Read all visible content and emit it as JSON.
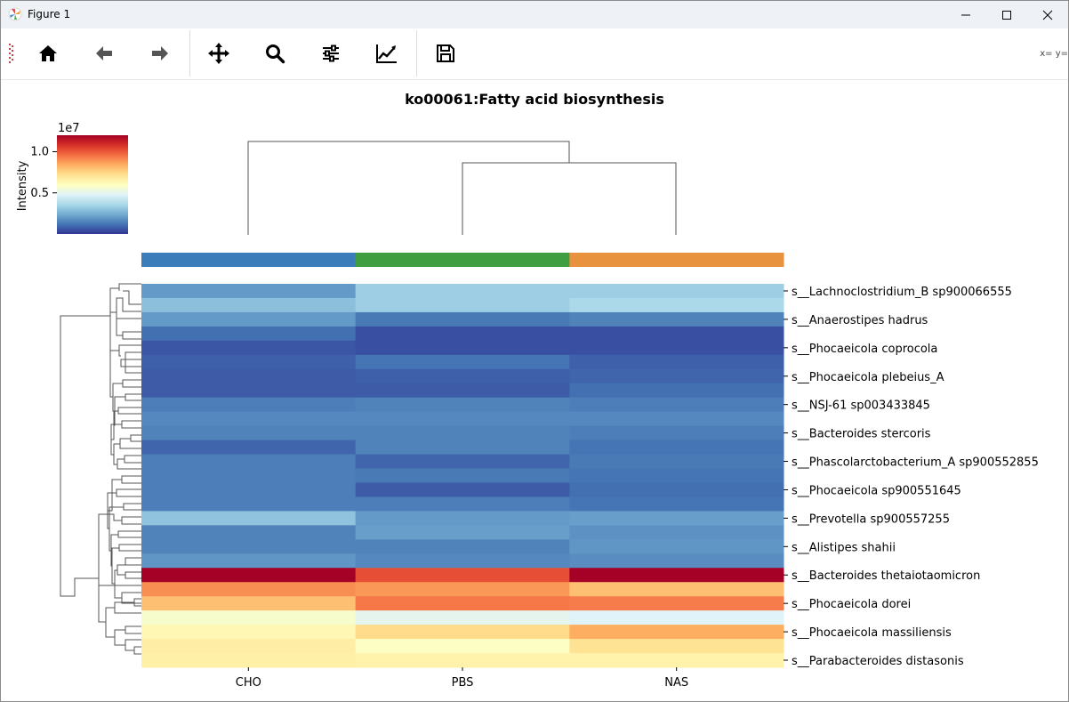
{
  "window": {
    "title": "Figure 1",
    "controls": {
      "minimize": "minimize-icon",
      "maximize": "maximize-icon",
      "close": "close-icon"
    }
  },
  "toolbar": {
    "items": [
      "home-icon",
      "back-arrow-icon",
      "forward-arrow-icon",
      "pan-icon",
      "zoom-icon",
      "configure-subplots-icon",
      "edit-axis-icon",
      "save-icon"
    ],
    "coords_text": "x= y="
  },
  "chart_data": {
    "type": "heatmap",
    "title": "ko00061:Fatty acid biosynthesis",
    "columns": [
      "CHO",
      "PBS",
      "NAS"
    ],
    "column_colors": [
      "#3a7db8",
      "#3f9e40",
      "#e8913f"
    ],
    "row_labels_shown": [
      "s__Lachnoclostridium_B sp900066555",
      "s__Anaerostipes hadrus",
      "s__Phocaeicola coprocola",
      "s__Phocaeicola plebeius_A",
      "s__NSJ-61 sp003433845",
      "s__Bacteroides stercoris",
      "s__Phascolarctobacterium_A sp900552855",
      "s__Phocaeicola sp900551645",
      "s__Prevotella sp900557255",
      "s__Alistipes shahii",
      "s__Bacteroides thetaiotaomicron",
      "s__Phocaeicola dorei",
      "s__Phocaeicola massiliensis",
      "s__Parabacteroides distasonis"
    ],
    "values": [
      [
        2000000.0,
        3300000.0,
        3300000.0
      ],
      [
        2900000.0,
        3300000.0,
        3600000.0
      ],
      [
        2000000.0,
        1300000.0,
        1500000.0
      ],
      [
        1100000.0,
        500000.0,
        500000.0
      ],
      [
        600000.0,
        500000.0,
        500000.0
      ],
      [
        800000.0,
        1200000.0,
        800000.0
      ],
      [
        700000.0,
        800000.0,
        900000.0
      ],
      [
        700000.0,
        700000.0,
        1100000.0
      ],
      [
        1400000.0,
        1500000.0,
        1400000.0
      ],
      [
        1600000.0,
        1600000.0,
        1600000.0
      ],
      [
        1500000.0,
        1500000.0,
        1400000.0
      ],
      [
        900000.0,
        1500000.0,
        1200000.0
      ],
      [
        1400000.0,
        900000.0,
        1300000.0
      ],
      [
        1400000.0,
        1300000.0,
        1200000.0
      ],
      [
        1400000.0,
        700000.0,
        1100000.0
      ],
      [
        1400000.0,
        1400000.0,
        1200000.0
      ],
      [
        3000000.0,
        2000000.0,
        2100000.0
      ],
      [
        1500000.0,
        2100000.0,
        1800000.0
      ],
      [
        1500000.0,
        1500000.0,
        1900000.0
      ],
      [
        1900000.0,
        1600000.0,
        1700000.0
      ],
      [
        12000000.0,
        10200000.0,
        12000000.0
      ],
      [
        9000000.0,
        8800000.0,
        8000000.0
      ],
      [
        8000000.0,
        9400000.0,
        9300000.0
      ],
      [
        5700000.0,
        5000000.0,
        4800000.0
      ],
      [
        6300000.0,
        7300000.0,
        8400000.0
      ],
      [
        6700000.0,
        5900000.0,
        7100000.0
      ],
      [
        6600000.0,
        6500000.0,
        6500000.0
      ]
    ],
    "colorbar": {
      "label": "Intensity",
      "multiplier_label": "1e7",
      "ticks": [
        "0.5",
        "1.0"
      ],
      "tick_values": [
        5000000,
        10000000
      ],
      "min": 0,
      "max": 12000000,
      "colormap": "RdYlBu_r"
    }
  }
}
